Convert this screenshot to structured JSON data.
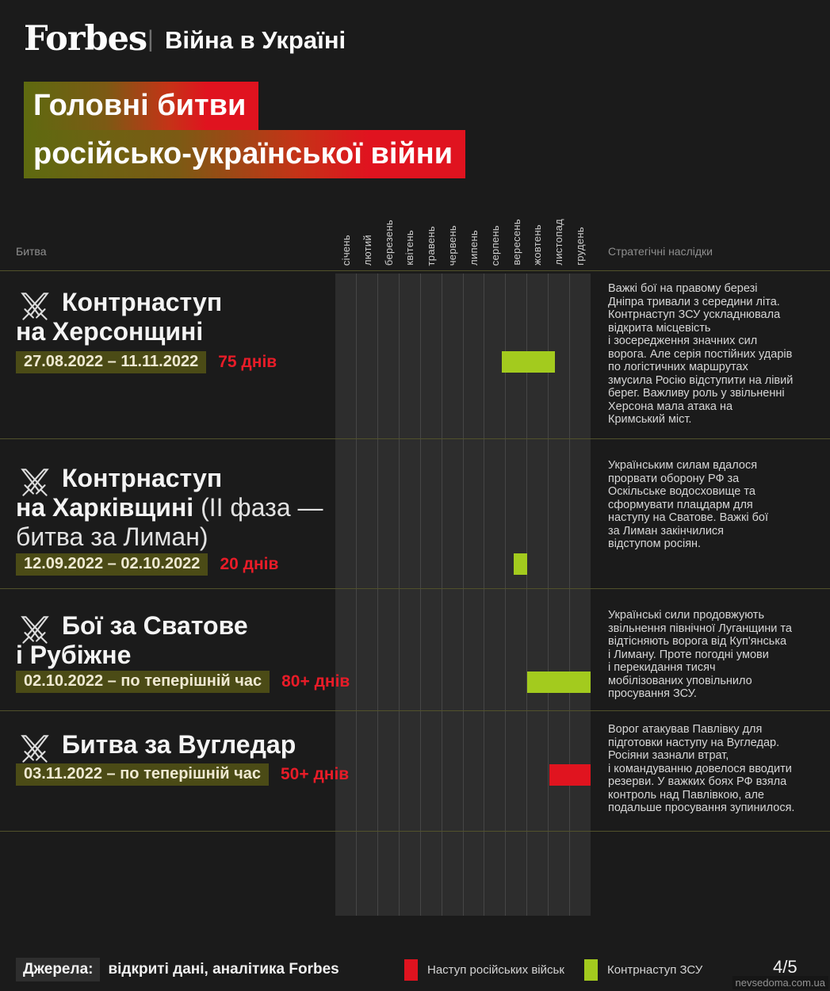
{
  "header": {
    "brand": "Forbes",
    "divider": "|",
    "section": "Війна в Україні"
  },
  "title": {
    "line1": "Головні битви",
    "line2": "російсько-української війни"
  },
  "columns": {
    "battle": "Битва",
    "consequences": "Стратегічні наслідки"
  },
  "months": [
    "січень",
    "лютий",
    "березень",
    "квітень",
    "травень",
    "червень",
    "липень",
    "серпень",
    "вересень",
    "жовтень",
    "листопад",
    "грудень"
  ],
  "battles": [
    {
      "icon": "crossed-swords",
      "name_bold": "Контрнаступ\nна Херсонщині",
      "name_regular": "",
      "dates": "27.08.2022 – 11.11.2022",
      "duration": "75 днів",
      "consequence": "Важкі бої на правому березі\nДніпра тривали з середини літа.\nКонтрнаступ ЗСУ ускладнювала\nвідкрита місцевість\nі зосередження значних сил\nворога. Але серія постійних ударів\nпо логістичних маршрутах\nзмусила Росію відступити на лівий\nберег. Важливу роль у звільненні\nХерсона мала атака на\nКримський міст."
    },
    {
      "icon": "crossed-swords",
      "name_bold": "Контрнаступ\nна Харківщині ",
      "name_regular": "(II фаза —\nбитва за Лиман)",
      "dates": "12.09.2022 – 02.10.2022",
      "duration": "20 днів",
      "consequence": "Українським силам вдалося\nпрорвати оборону РФ за\nОскільське водосховище та\nсформувати плацдарм для\nнаступу на Сватове. Важкі бої\nза Лиман закінчилися\nвідступом росіян."
    },
    {
      "icon": "crossed-swords",
      "name_bold": "Бої за Сватове\nі Рубіжне",
      "name_regular": "",
      "dates": "02.10.2022 – по теперішній час",
      "duration": "80+ днів",
      "consequence": "Українські сили продовжують\nзвільнення північної Луганщини та\nвідтісняють ворога від Куп'янська\nі Лиману. Проте погодні умови\nі перекидання тисяч\nмобілізованих уповільнило\nпросування ЗСУ."
    },
    {
      "icon": "crossed-swords",
      "name_bold": "Битва за Вугледар",
      "name_regular": "",
      "dates": "03.11.2022 – по теперішній час",
      "duration": "50+ днів",
      "consequence": "Ворог атакував Павлівку для\nпідготовки наступу на Вугледар.\nРосіяни зазнали втрат,\nі командуванню довелося вводити\nрезерви. У важких боях РФ взяла\nконтроль над Павлівкою, але\nподальше просування зупинилося."
    }
  ],
  "legend": [
    {
      "label": "Наступ російських військ",
      "color": "#e0131f"
    },
    {
      "label": "Контрнаступ ЗСУ",
      "color": "#a3cb1e"
    }
  ],
  "footer": {
    "sources_label": "Джерела:",
    "sources_text": "відкриті дані, аналітика Forbes",
    "page": "4/5",
    "watermark": "nevsedoma.com.ua"
  },
  "colors": {
    "page_bg": "#1b1b1b",
    "chart_bg": "#2d2d2d",
    "grid_line": "#464646",
    "row_separator": "#51512b",
    "badge_olive": "#4b4b16",
    "duration_red": "#e81c28",
    "counteroffensive_green": "#a3cb1e",
    "russian_advance_red": "#e0131f",
    "gradient_left": "#5e6a10",
    "gradient_right": "#e0131f"
  },
  "chart_data": {
    "type": "gantt",
    "title": "Головні битви російсько-української війни",
    "year_shown": "2022",
    "x_axis_months": [
      "січень",
      "лютий",
      "березень",
      "квітень",
      "травень",
      "червень",
      "липень",
      "серпень",
      "вересень",
      "жовтень",
      "листопад",
      "грудень"
    ],
    "legend_position": "bottom",
    "bars": [
      {
        "name": "Контрнаступ на Херсонщині",
        "start": "27.08.2022",
        "end": "11.11.2022",
        "duration_label": "75 днів",
        "category": "Контрнаступ ЗСУ",
        "color": "#a3cb1e"
      },
      {
        "name": "Контрнаступ на Харківщині (II фаза — битва за Лиман)",
        "start": "12.09.2022",
        "end": "02.10.2022",
        "duration_label": "20 днів",
        "category": "Контрнаступ ЗСУ",
        "color": "#a3cb1e"
      },
      {
        "name": "Бої за Сватове і Рубіжне",
        "start": "02.10.2022",
        "end": "по теперішній час",
        "duration_label": "80+ днів",
        "category": "Контрнаступ ЗСУ",
        "color": "#a3cb1e"
      },
      {
        "name": "Битва за Вугледар",
        "start": "03.11.2022",
        "end": "по теперішній час",
        "duration_label": "50+ днів",
        "category": "Наступ російських військ",
        "color": "#e0141f"
      }
    ]
  }
}
